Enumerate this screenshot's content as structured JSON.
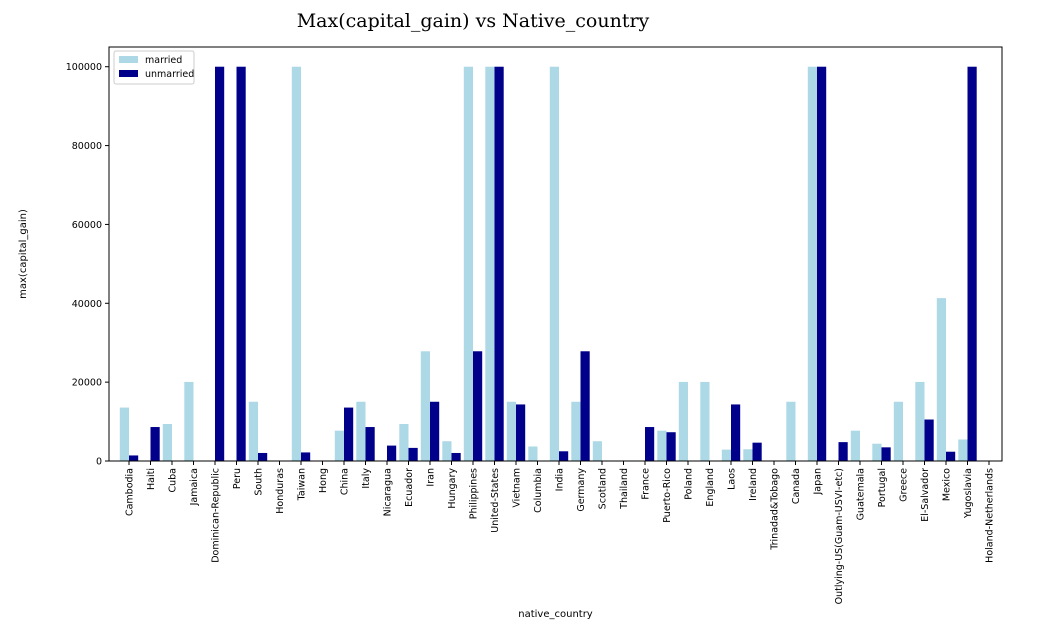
{
  "chart_data": {
    "type": "bar",
    "title": "Max(capital_gain) vs Native_country",
    "xlabel": "native_country",
    "ylabel": "max(capital_gain)",
    "ylim": [
      0,
      105000
    ],
    "yticks": [
      0,
      20000,
      40000,
      60000,
      80000,
      100000
    ],
    "grid": false,
    "legend_position": "top-left",
    "colors": {
      "married": "#add8e6",
      "unmarried": "#00008b"
    },
    "categories": [
      "Cambodia",
      "Haiti",
      "Cuba",
      "Jamaica",
      "Dominican-Republic",
      "Peru",
      "South",
      "Honduras",
      "Taiwan",
      "Hong",
      "China",
      "Italy",
      "Nicaragua",
      "Ecuador",
      "Iran",
      "Hungary",
      "Philippines",
      "United-States",
      "Vietnam",
      "Columbia",
      "India",
      "Germany",
      "Scotland",
      "Thailand",
      "France",
      "Puerto-Rico",
      "Poland",
      "England",
      "Laos",
      "Ireland",
      "Trinadad&Tobago",
      "Canada",
      "Japan",
      "Outlying-US(Guam-USVI-etc)",
      "Guatemala",
      "Portugal",
      "Greece",
      "El-Salvador",
      "Mexico",
      "Yugoslavia",
      "Holand-Netherlands"
    ],
    "series": [
      {
        "name": "married",
        "values": [
          13550,
          0,
          9386,
          20051,
          0,
          0,
          15024,
          0,
          99999,
          0,
          7688,
          15024,
          0,
          9386,
          27828,
          5013,
          99999,
          99999,
          15024,
          3674,
          99999,
          15024,
          5013,
          0,
          0,
          7688,
          20051,
          20051,
          2885,
          2977,
          0,
          15024,
          99999,
          0,
          7688,
          4386,
          15024,
          20051,
          41310,
          5455,
          0
        ]
      },
      {
        "name": "unmarried",
        "values": [
          1409,
          8614,
          0,
          0,
          99999,
          99999,
          2036,
          0,
          2174,
          0,
          13550,
          8614,
          3908,
          3325,
          15024,
          2036,
          27828,
          99999,
          14344,
          0,
          2463,
          27828,
          0,
          0,
          8614,
          7298,
          0,
          0,
          14344,
          4650,
          0,
          0,
          99999,
          4787,
          0,
          3464,
          0,
          10520,
          2354,
          99999,
          0
        ]
      }
    ]
  }
}
